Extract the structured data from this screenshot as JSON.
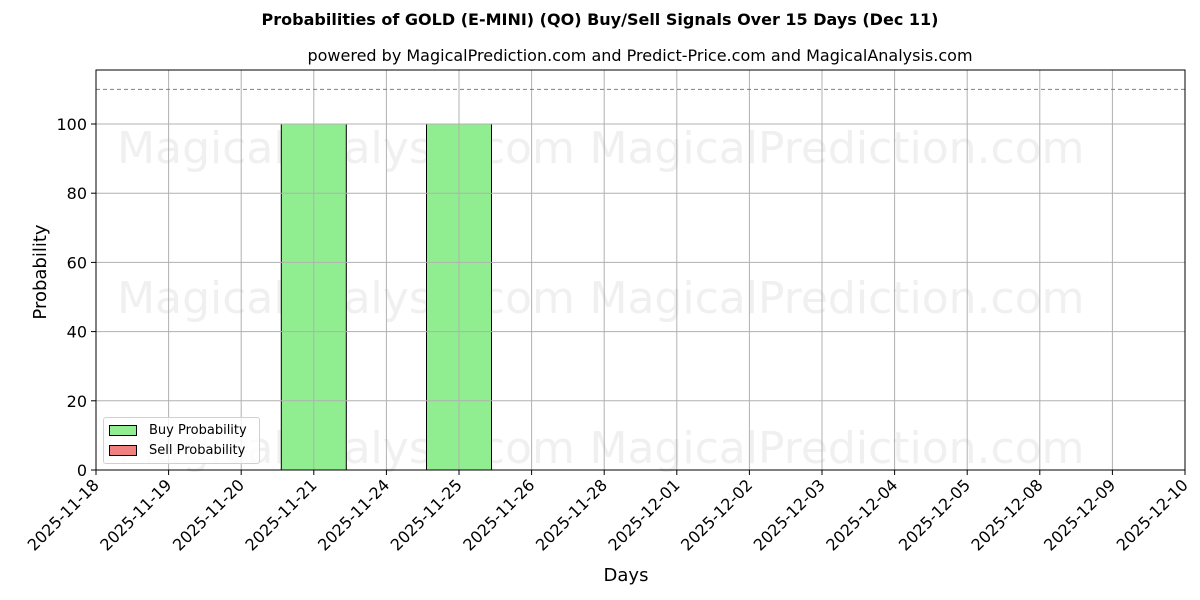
{
  "chart_data": {
    "type": "bar",
    "title": "Probabilities of GOLD (E-MINI) (QO) Buy/Sell Signals Over 15 Days (Dec 11)",
    "subtitle": "powered by MagicalPrediction.com and Predict-Price.com and MagicalAnalysis.com",
    "xlabel": "Days",
    "ylabel": "Probability",
    "ylim": [
      0,
      115
    ],
    "yticks": [
      0,
      20,
      40,
      60,
      80,
      100
    ],
    "categories": [
      "2025-11-18",
      "2025-11-19",
      "2025-11-20",
      "2025-11-21",
      "2025-11-24",
      "2025-11-25",
      "2025-11-26",
      "2025-11-28",
      "2025-12-01",
      "2025-12-02",
      "2025-12-03",
      "2025-12-04",
      "2025-12-05",
      "2025-12-08",
      "2025-12-09",
      "2025-12-10"
    ],
    "series": [
      {
        "name": "Buy Probability",
        "color": "#90ee90",
        "values": [
          0,
          0,
          0,
          100,
          0,
          100,
          0,
          0,
          0,
          0,
          0,
          0,
          0,
          0,
          0,
          0
        ]
      },
      {
        "name": "Sell Probability",
        "color": "#f08080",
        "values": [
          0,
          0,
          0,
          0,
          0,
          0,
          0,
          0,
          0,
          0,
          0,
          0,
          0,
          0,
          0,
          0
        ]
      }
    ],
    "reference_line": {
      "y": 110,
      "style": "dashed",
      "color": "#808080"
    },
    "grid": true,
    "legend_position": "lower left",
    "watermarks": [
      "MagicalAnalysis.com",
      "MagicalPrediction.com"
    ]
  },
  "legend": {
    "buy_label": "Buy Probability",
    "sell_label": "Sell Probability"
  }
}
